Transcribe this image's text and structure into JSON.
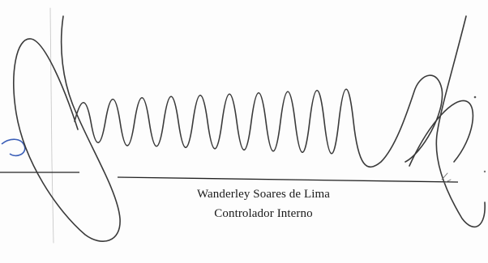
{
  "signatory": {
    "name": "Wanderley Soares de Lima",
    "role": "Controlador Interno"
  },
  "colors": {
    "ink": "#3a3a3a",
    "stamp_blue": "#3b5fb8",
    "paper": "#fdfdfd"
  }
}
